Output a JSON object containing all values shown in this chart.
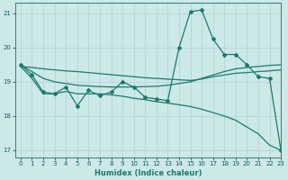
{
  "xlabel": "Humidex (Indice chaleur)",
  "background_color": "#cce8e8",
  "line_color": "#1a7a6e",
  "grid_color": "#b8d8d8",
  "xlim": [
    -0.5,
    23
  ],
  "ylim": [
    16.8,
    21.3
  ],
  "yticks": [
    17,
    18,
    19,
    20,
    21
  ],
  "xticks": [
    0,
    1,
    2,
    3,
    4,
    5,
    6,
    7,
    8,
    9,
    10,
    11,
    12,
    13,
    14,
    15,
    16,
    17,
    18,
    19,
    20,
    21,
    22,
    23
  ],
  "main_x": [
    0,
    1,
    2,
    3,
    4,
    5,
    6,
    7,
    8,
    9,
    10,
    11,
    12,
    13,
    14,
    15,
    16,
    17,
    18,
    19,
    20,
    21,
    22,
    23
  ],
  "main_y": [
    19.5,
    19.2,
    18.7,
    18.65,
    18.85,
    18.3,
    18.75,
    18.6,
    18.7,
    19.0,
    18.85,
    18.55,
    18.5,
    18.45,
    20.0,
    21.05,
    21.1,
    20.25,
    19.8,
    19.8,
    19.5,
    19.15,
    19.1,
    17.0
  ],
  "smooth1_x": [
    0,
    1,
    2,
    3,
    4,
    5,
    6,
    7,
    8,
    9,
    10,
    11,
    12,
    13,
    14,
    15,
    16,
    17,
    18,
    19,
    20,
    21,
    22,
    23
  ],
  "smooth1_y": [
    19.45,
    19.42,
    19.38,
    19.35,
    19.32,
    19.3,
    19.27,
    19.24,
    19.21,
    19.18,
    19.15,
    19.12,
    19.1,
    19.08,
    19.06,
    19.04,
    19.08,
    19.15,
    19.2,
    19.25,
    19.27,
    19.3,
    19.32,
    19.35
  ],
  "smooth2_x": [
    0,
    1,
    2,
    3,
    4,
    5,
    6,
    7,
    8,
    9,
    10,
    11,
    12,
    13,
    14,
    15,
    16,
    17,
    18,
    19,
    20,
    21,
    22,
    23
  ],
  "smooth2_y": [
    19.5,
    19.3,
    19.1,
    19.0,
    18.95,
    18.9,
    18.88,
    18.86,
    18.85,
    18.85,
    18.85,
    18.86,
    18.87,
    18.9,
    18.95,
    19.0,
    19.1,
    19.2,
    19.3,
    19.38,
    19.42,
    19.45,
    19.48,
    19.5
  ],
  "bottom_x": [
    0,
    1,
    2,
    3,
    4,
    5,
    6,
    7,
    8,
    9,
    10,
    11,
    12,
    13,
    14,
    15,
    16,
    17,
    18,
    19,
    20,
    21,
    22,
    23
  ],
  "bottom_y": [
    19.45,
    19.1,
    18.65,
    18.65,
    18.72,
    18.65,
    18.65,
    18.65,
    18.62,
    18.58,
    18.52,
    18.48,
    18.42,
    18.38,
    18.33,
    18.28,
    18.2,
    18.1,
    18.0,
    17.88,
    17.68,
    17.48,
    17.15,
    17.0
  ]
}
